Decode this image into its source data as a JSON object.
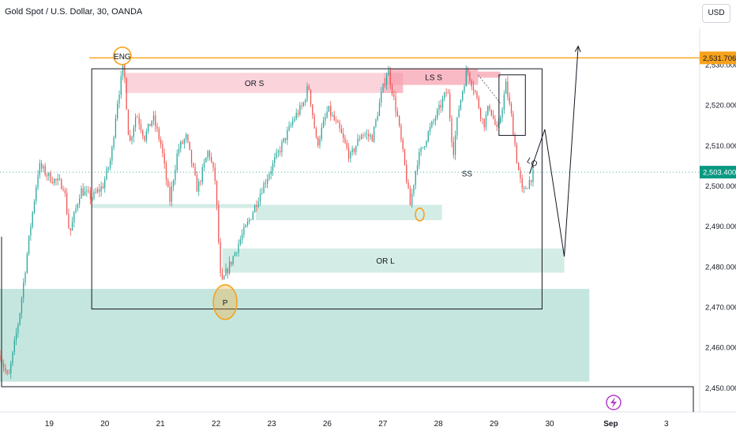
{
  "header": {
    "title": "Gold Spot / U.S. Dollar, 30, OANDA",
    "currency": "USD"
  },
  "colors": {
    "up": "#26a69a",
    "down": "#ef5350",
    "level_line": "#f7a21b",
    "current_price": "#089981",
    "supply_zone": "#f8c4cf",
    "demand_zone": "#cde9e2"
  },
  "chart_data": {
    "type": "candlestick",
    "instrument": "Gold Spot / U.S. Dollar",
    "timeframe": "30",
    "source": "OANDA",
    "currency": "USD",
    "ylim": [
      2444,
      2539
    ],
    "y_ticks": [
      2450,
      2460,
      2470,
      2480,
      2490,
      2500,
      2510,
      2520,
      2530
    ],
    "y_tick_labels": [
      "2,450.000",
      "2,460.000",
      "2,470.000",
      "2,480.000",
      "2,490.000",
      "2,500.000",
      "2,510.000",
      "2,520.000",
      "2,530.000"
    ],
    "x_ticks": [
      "19",
      "20",
      "21",
      "22",
      "23",
      "26",
      "27",
      "28",
      "29",
      "30",
      "Sep",
      "3"
    ],
    "price_labels": [
      {
        "value": 2531.706,
        "text": "2,531.706",
        "kind": "horizontal-level"
      },
      {
        "value": 2503.4,
        "text": "2,503.400",
        "kind": "current-price"
      }
    ],
    "price_path": [
      [
        0,
        2458
      ],
      [
        0.3,
        2452
      ],
      [
        0.7,
        2468
      ],
      [
        1.1,
        2490
      ],
      [
        1.4,
        2505
      ],
      [
        1.8,
        2502
      ],
      [
        2.3,
        2500
      ],
      [
        2.5,
        2488
      ],
      [
        2.9,
        2499
      ],
      [
        3.3,
        2497
      ],
      [
        3.7,
        2500
      ],
      [
        4.0,
        2507
      ],
      [
        4.2,
        2520
      ],
      [
        4.45,
        2530
      ],
      [
        4.65,
        2510
      ],
      [
        4.9,
        2518
      ],
      [
        5.2,
        2512
      ],
      [
        5.5,
        2517
      ],
      [
        5.8,
        2510
      ],
      [
        6.1,
        2496
      ],
      [
        6.4,
        2509
      ],
      [
        6.7,
        2512
      ],
      [
        7.1,
        2499
      ],
      [
        7.5,
        2509
      ],
      [
        7.75,
        2501
      ],
      [
        7.95,
        2475
      ],
      [
        8.1,
        2478
      ],
      [
        8.3,
        2481
      ],
      [
        8.6,
        2486
      ],
      [
        9.0,
        2492
      ],
      [
        9.4,
        2499
      ],
      [
        9.8,
        2505
      ],
      [
        10.2,
        2511
      ],
      [
        10.6,
        2517
      ],
      [
        10.9,
        2520
      ],
      [
        11.1,
        2525
      ],
      [
        11.4,
        2510
      ],
      [
        11.8,
        2519
      ],
      [
        12.2,
        2514
      ],
      [
        12.6,
        2507
      ],
      [
        13.0,
        2513
      ],
      [
        13.4,
        2512
      ],
      [
        13.7,
        2522
      ],
      [
        13.95,
        2529
      ],
      [
        14.3,
        2517
      ],
      [
        14.6,
        2503
      ],
      [
        14.75,
        2495
      ],
      [
        15.0,
        2506
      ],
      [
        15.4,
        2513
      ],
      [
        15.8,
        2519
      ],
      [
        16.1,
        2524
      ],
      [
        16.3,
        2508
      ],
      [
        16.5,
        2519
      ],
      [
        16.8,
        2529
      ],
      [
        17.1,
        2523
      ],
      [
        17.4,
        2515
      ],
      [
        17.6,
        2520
      ],
      [
        17.9,
        2513
      ],
      [
        18.2,
        2525
      ],
      [
        18.4,
        2517
      ],
      [
        18.6,
        2506
      ],
      [
        18.8,
        2498
      ],
      [
        19.1,
        2502
      ],
      [
        19.2,
        2503.4
      ]
    ],
    "drawings": [
      {
        "type": "horizontal-line",
        "value": 2531.706
      },
      {
        "type": "rectangle",
        "label": "",
        "x": [
          3.3,
          19.5
        ],
        "y": [
          2469.5,
          2529
        ]
      },
      {
        "type": "rectangle",
        "label": "OR S",
        "x": [
          4.5,
          13.8
        ],
        "y": [
          2523,
          2528
        ]
      },
      {
        "type": "rectangle",
        "label": "LS S",
        "x": [
          14.0,
          17.2
        ],
        "y": [
          2525,
          2529
        ]
      },
      {
        "type": "rectangle",
        "label": "",
        "x": [
          13.8,
          14.5
        ],
        "y": [
          2523,
          2528
        ]
      },
      {
        "type": "rectangle",
        "label": "",
        "x": [
          17.2,
          18.0
        ],
        "y": [
          2526.8,
          2528.3
        ]
      },
      {
        "type": "rectangle",
        "label": "",
        "x": [
          3.3,
          9.2
        ],
        "y": [
          2494.5,
          2495.5
        ]
      },
      {
        "type": "rectangle",
        "label": "",
        "x": [
          9.2,
          15.9
        ],
        "y": [
          2491.5,
          2495.3
        ]
      },
      {
        "type": "rectangle",
        "label": "OR L",
        "x": [
          8.0,
          20.3
        ],
        "y": [
          2478.5,
          2484.5
        ]
      },
      {
        "type": "rectangle",
        "label": "",
        "x": [
          0,
          21.2
        ],
        "y": [
          2451.5,
          2474.5
        ]
      },
      {
        "type": "rectangle",
        "label": "",
        "x": [
          17.95,
          18.9
        ],
        "y": [
          2512.5,
          2527.5
        ]
      },
      {
        "type": "ellipse",
        "label": "ENG",
        "x": 4.4,
        "y": 2532.2
      },
      {
        "type": "ellipse",
        "label": "P",
        "x": 8.1,
        "y": 2471.2
      },
      {
        "type": "ellipse",
        "label": "",
        "x": 15.1,
        "y": 2492.9
      },
      {
        "type": "text",
        "label": "SS",
        "x": 16.8,
        "y": 2502.3
      },
      {
        "type": "text",
        "label": "LQ",
        "x": 19.1,
        "y": 2505.3
      },
      {
        "type": "path",
        "label": "",
        "points": [
          [
            19.05,
            2503
          ],
          [
            19.6,
            2514
          ],
          [
            20.3,
            2482.5
          ],
          [
            20.8,
            2534.6
          ]
        ]
      },
      {
        "type": "dashed-line",
        "label": "",
        "points": [
          [
            17.2,
            2527.5
          ],
          [
            18.0,
            2520.5
          ]
        ]
      }
    ]
  }
}
